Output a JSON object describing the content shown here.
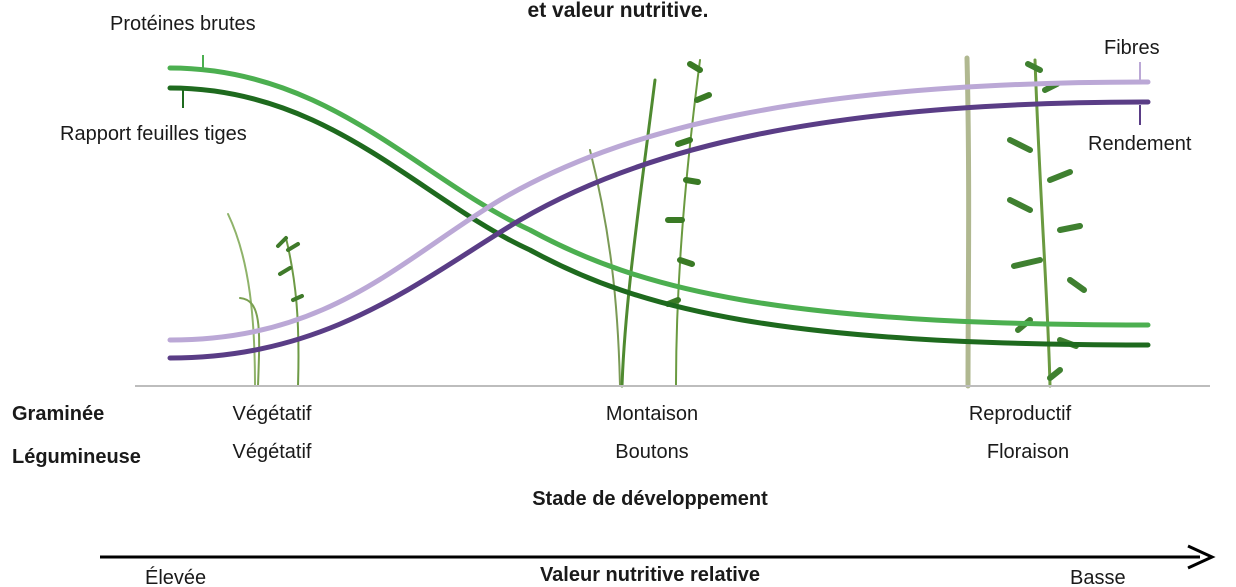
{
  "title": "et valeur nutritive.",
  "curves": {
    "proteins": "Protéines brutes",
    "leaf_stem": "Rapport feuilles tiges",
    "fibre": "Fibres",
    "yield": "Rendement"
  },
  "rows": {
    "grass": "Graminée",
    "legume": "Légumineuse"
  },
  "stages": [
    {
      "grass": "Végétatif",
      "legume": "Végétatif"
    },
    {
      "grass": "Montaison",
      "legume": "Boutons"
    },
    {
      "grass": "Reproductif",
      "legume": "Floraison"
    }
  ],
  "x_axis_label": "Stade de développement",
  "nutritive": {
    "high": "Élevée",
    "label": "Valeur nutritive relative",
    "low": "Basse"
  }
}
